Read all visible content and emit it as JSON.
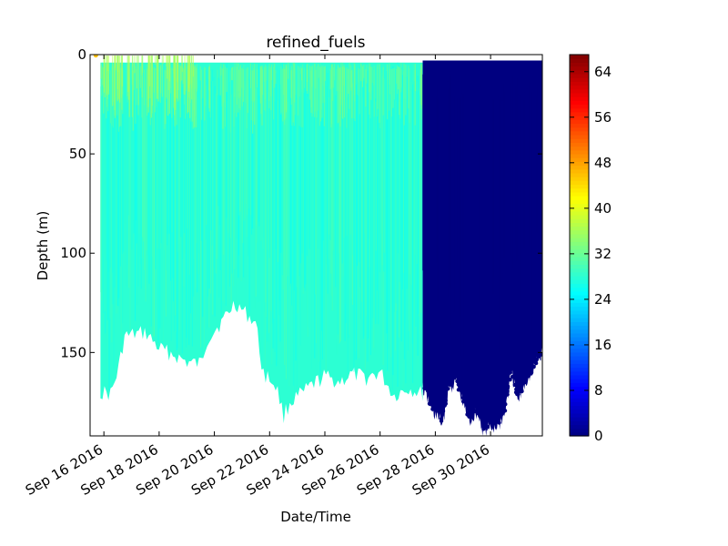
{
  "chart_data": {
    "type": "scatter",
    "title": "refined_fuels",
    "xlabel": "Date/Time",
    "ylabel": "Depth (m)",
    "x_tick_labels": [
      "Sep 16 2016",
      "Sep 18 2016",
      "Sep 20 2016",
      "Sep 22 2016",
      "Sep 24 2016",
      "Sep 26 2016",
      "Sep 28 2016",
      "Sep 30 2016"
    ],
    "x_tick_dates": [
      "2016-09-16",
      "2016-09-18",
      "2016-09-20",
      "2016-09-22",
      "2016-09-24",
      "2016-09-26",
      "2016-09-28",
      "2016-09-30"
    ],
    "xlim": [
      "2016-09-15T12:00",
      "2016-10-01T21:00"
    ],
    "y_ticks": [
      "0",
      "50",
      "100",
      "150"
    ],
    "y_tick_values": [
      0,
      50,
      100,
      150
    ],
    "ylim": [
      0,
      192
    ],
    "y_inverted": true,
    "colorbar": {
      "colormap": "jet",
      "range": [
        0,
        67
      ],
      "tick_labels": [
        "0",
        "8",
        "16",
        "24",
        "32",
        "40",
        "48",
        "56",
        "64"
      ],
      "tick_values": [
        0,
        8,
        16,
        24,
        32,
        40,
        48,
        56,
        64
      ]
    },
    "series": [
      {
        "time_range": [
          "2016-09-15T21:00",
          "2016-09-27T13:00"
        ],
        "typical_value": 28,
        "surface_value": 33,
        "surface_patch_value": 36,
        "start_value": 46,
        "max_depth_profile": [
          {
            "t": "2016-09-15T21:00",
            "d": 170
          },
          {
            "t": "2016-09-16T06:00",
            "d": 171
          },
          {
            "t": "2016-09-16T12:00",
            "d": 160
          },
          {
            "t": "2016-09-16T18:00",
            "d": 142
          },
          {
            "t": "2016-09-17T12:00",
            "d": 140
          },
          {
            "t": "2016-09-18T00:00",
            "d": 148
          },
          {
            "t": "2016-09-18T12:00",
            "d": 151
          },
          {
            "t": "2016-09-19T00:00",
            "d": 155
          },
          {
            "t": "2016-09-19T12:00",
            "d": 156
          },
          {
            "t": "2016-09-19T18:00",
            "d": 143
          },
          {
            "t": "2016-09-20T06:00",
            "d": 135
          },
          {
            "t": "2016-09-20T18:00",
            "d": 125
          },
          {
            "t": "2016-09-21T06:00",
            "d": 132
          },
          {
            "t": "2016-09-21T12:00",
            "d": 135
          },
          {
            "t": "2016-09-21T18:00",
            "d": 160
          },
          {
            "t": "2016-09-22T06:00",
            "d": 167
          },
          {
            "t": "2016-09-22T12:00",
            "d": 182
          },
          {
            "t": "2016-09-22T18:00",
            "d": 175
          },
          {
            "t": "2016-09-23T06:00",
            "d": 170
          },
          {
            "t": "2016-09-23T12:00",
            "d": 167
          },
          {
            "t": "2016-09-24T00:00",
            "d": 162
          },
          {
            "t": "2016-09-24T12:00",
            "d": 165
          },
          {
            "t": "2016-09-25T00:00",
            "d": 161
          },
          {
            "t": "2016-09-25T12:00",
            "d": 163
          },
          {
            "t": "2016-09-26T00:00",
            "d": 160
          },
          {
            "t": "2016-09-26T12:00",
            "d": 172
          },
          {
            "t": "2016-09-27T00:00",
            "d": 168
          },
          {
            "t": "2016-09-27T13:00",
            "d": 171
          }
        ]
      },
      {
        "time_range": [
          "2016-09-27T13:00",
          "2016-10-01T21:00"
        ],
        "typical_value": 0,
        "max_depth_profile": [
          {
            "t": "2016-09-27T13:00",
            "d": 168
          },
          {
            "t": "2016-09-27T22:00",
            "d": 180
          },
          {
            "t": "2016-09-28T06:00",
            "d": 186
          },
          {
            "t": "2016-09-28T12:00",
            "d": 168
          },
          {
            "t": "2016-09-28T18:00",
            "d": 165
          },
          {
            "t": "2016-09-29T00:00",
            "d": 176
          },
          {
            "t": "2016-09-29T06:00",
            "d": 185
          },
          {
            "t": "2016-09-29T12:00",
            "d": 180
          },
          {
            "t": "2016-09-29T18:00",
            "d": 190
          },
          {
            "t": "2016-09-30T06:00",
            "d": 187
          },
          {
            "t": "2016-09-30T12:00",
            "d": 182
          },
          {
            "t": "2016-09-30T18:00",
            "d": 160
          },
          {
            "t": "2016-10-01T00:00",
            "d": 175
          },
          {
            "t": "2016-10-01T06:00",
            "d": 165
          },
          {
            "t": "2016-10-01T12:00",
            "d": 160
          },
          {
            "t": "2016-10-01T21:00",
            "d": 150
          }
        ]
      }
    ]
  }
}
